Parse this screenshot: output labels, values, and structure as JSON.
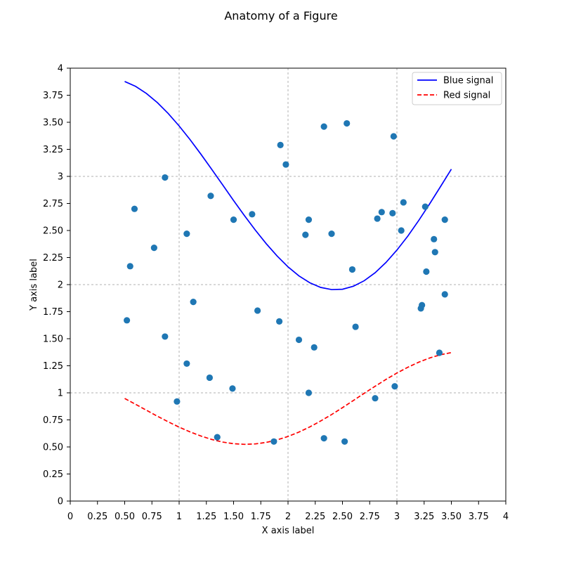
{
  "chart_data": {
    "type": "line",
    "title": "Anatomy of a Figure",
    "xlabel": "X axis label",
    "ylabel": "Y axis label",
    "xlim": [
      0,
      4
    ],
    "ylim": [
      0,
      4
    ],
    "xticks": [
      {
        "value": 0,
        "label": "0"
      },
      {
        "value": 0.25,
        "label": "0.25"
      },
      {
        "value": 0.5,
        "label": "0.50"
      },
      {
        "value": 0.75,
        "label": "0.75"
      },
      {
        "value": 1,
        "label": "1"
      },
      {
        "value": 1.25,
        "label": "1.25"
      },
      {
        "value": 1.5,
        "label": "1.50"
      },
      {
        "value": 1.75,
        "label": "1.75"
      },
      {
        "value": 2,
        "label": "2"
      },
      {
        "value": 2.25,
        "label": "2.25"
      },
      {
        "value": 2.5,
        "label": "2.50"
      },
      {
        "value": 2.75,
        "label": "2.75"
      },
      {
        "value": 3,
        "label": "3"
      },
      {
        "value": 3.25,
        "label": "3.25"
      },
      {
        "value": 3.5,
        "label": "3.50"
      },
      {
        "value": 3.75,
        "label": "3.75"
      },
      {
        "value": 4,
        "label": "4"
      }
    ],
    "yticks": [
      {
        "value": 0,
        "label": "0"
      },
      {
        "value": 0.25,
        "label": "0.25"
      },
      {
        "value": 0.5,
        "label": "0.50"
      },
      {
        "value": 0.75,
        "label": "0.75"
      },
      {
        "value": 1,
        "label": "1"
      },
      {
        "value": 1.25,
        "label": "1.25"
      },
      {
        "value": 1.5,
        "label": "1.50"
      },
      {
        "value": 1.75,
        "label": "1.75"
      },
      {
        "value": 2,
        "label": "2"
      },
      {
        "value": 2.25,
        "label": "2.25"
      },
      {
        "value": 2.5,
        "label": "2.50"
      },
      {
        "value": 2.75,
        "label": "2.75"
      },
      {
        "value": 3,
        "label": "3"
      },
      {
        "value": 3.25,
        "label": "3.25"
      },
      {
        "value": 3.5,
        "label": "3.50"
      },
      {
        "value": 3.75,
        "label": "3.75"
      },
      {
        "value": 4,
        "label": "4"
      }
    ],
    "major_grid": [
      1,
      2,
      3
    ],
    "grid": true,
    "legend_position": "top-right",
    "series": [
      {
        "name": "Blue signal",
        "kind": "line",
        "style": "solid",
        "color": "#0000ff",
        "x": [
          0.5,
          0.6,
          0.7,
          0.8,
          0.9,
          1.0,
          1.1,
          1.2,
          1.3,
          1.4,
          1.5,
          1.6,
          1.7,
          1.8,
          1.9,
          2.0,
          2.1,
          2.2,
          2.3,
          2.4,
          2.5,
          2.6,
          2.7,
          2.8,
          2.9,
          3.0,
          3.1,
          3.2,
          3.3,
          3.4,
          3.5
        ],
        "y": [
          3.877,
          3.832,
          3.766,
          3.682,
          3.581,
          3.466,
          3.34,
          3.205,
          3.064,
          2.921,
          2.777,
          2.637,
          2.503,
          2.378,
          2.264,
          2.164,
          2.081,
          2.017,
          1.974,
          1.954,
          1.957,
          1.985,
          2.036,
          2.11,
          2.205,
          2.319,
          2.448,
          2.592,
          2.745,
          2.905,
          3.067
        ]
      },
      {
        "name": "Red signal",
        "kind": "line",
        "style": "dashed",
        "color": "#ff0000",
        "x": [
          0.5,
          0.6,
          0.7,
          0.8,
          0.9,
          1.0,
          1.1,
          1.2,
          1.3,
          1.4,
          1.5,
          1.6,
          1.7,
          1.8,
          1.9,
          2.0,
          2.1,
          2.2,
          2.3,
          2.4,
          2.5,
          2.6,
          2.7,
          2.8,
          2.9,
          3.0,
          3.1,
          3.2,
          3.3,
          3.4,
          3.5
        ],
        "y": [
          0.948,
          0.894,
          0.839,
          0.784,
          0.732,
          0.683,
          0.639,
          0.601,
          0.569,
          0.545,
          0.53,
          0.524,
          0.528,
          0.542,
          0.565,
          0.597,
          0.637,
          0.685,
          0.74,
          0.799,
          0.863,
          0.929,
          0.996,
          1.061,
          1.124,
          1.183,
          1.236,
          1.283,
          1.322,
          1.352,
          1.372
        ]
      },
      {
        "name": "",
        "kind": "scatter",
        "color": "#1f77b4",
        "x": [
          0.52,
          0.55,
          0.59,
          0.77,
          0.87,
          0.87,
          0.98,
          1.07,
          1.07,
          1.13,
          1.28,
          1.29,
          1.35,
          1.49,
          1.5,
          1.67,
          1.72,
          1.87,
          1.92,
          1.93,
          1.98,
          2.1,
          2.16,
          2.19,
          2.19,
          2.24,
          2.33,
          2.33,
          2.4,
          2.52,
          2.54,
          2.59,
          2.62,
          2.8,
          2.82,
          2.86,
          2.96,
          2.97,
          2.98,
          3.04,
          3.06,
          3.22,
          3.23,
          3.26,
          3.27,
          3.34,
          3.35,
          3.39,
          3.44,
          3.44
        ],
        "y": [
          1.67,
          2.17,
          2.7,
          2.34,
          2.99,
          1.52,
          0.92,
          2.47,
          1.27,
          1.84,
          1.14,
          2.82,
          0.59,
          1.04,
          2.6,
          2.65,
          1.76,
          0.55,
          1.66,
          3.29,
          3.11,
          1.49,
          2.46,
          2.6,
          1.0,
          1.42,
          3.46,
          0.58,
          2.47,
          0.55,
          3.49,
          2.14,
          1.61,
          0.95,
          2.61,
          2.67,
          2.66,
          3.37,
          1.06,
          2.5,
          2.76,
          1.78,
          1.81,
          2.72,
          2.12,
          2.42,
          2.3,
          1.37,
          1.91,
          2.6
        ]
      }
    ]
  }
}
